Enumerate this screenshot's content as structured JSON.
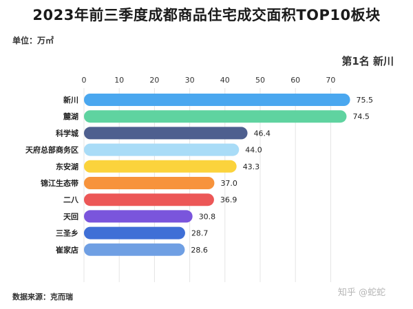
{
  "title": "2023年前三季度成都商品住宅成交面积TOP10板块",
  "unit": "单位：万㎡",
  "rank_note": "第1名  新川",
  "source": "数据来源：克而瑞",
  "watermark": "知乎 @蛇蛇",
  "chart_data": {
    "type": "bar",
    "orientation": "horizontal",
    "categories": [
      "新川",
      "麓湖",
      "科学城",
      "天府总部商务区",
      "东安湖",
      "锦江生态带",
      "二八",
      "天回",
      "三圣乡",
      "崔家店"
    ],
    "values": [
      75.5,
      74.5,
      46.4,
      44.0,
      43.3,
      37.0,
      36.9,
      30.8,
      28.7,
      28.6
    ],
    "value_labels": [
      "75.5",
      "74.5",
      "46.4",
      "44.0",
      "43.3",
      "37.0",
      "36.9",
      "30.8",
      "28.7",
      "28.6"
    ],
    "colors": [
      "#4aa7ef",
      "#5fd3a0",
      "#4e5f8f",
      "#a9dcf7",
      "#fbd33c",
      "#f7933c",
      "#ec5757",
      "#7a55dc",
      "#3f6fd6",
      "#6f9fe3"
    ],
    "xlim": [
      0,
      78
    ],
    "xticks": [
      0,
      10,
      20,
      30,
      40,
      50,
      60,
      70
    ],
    "xtick_labels": [
      "0",
      "10",
      "20",
      "30",
      "40",
      "50",
      "60",
      "70"
    ],
    "axis_position": "top",
    "grid": true
  }
}
